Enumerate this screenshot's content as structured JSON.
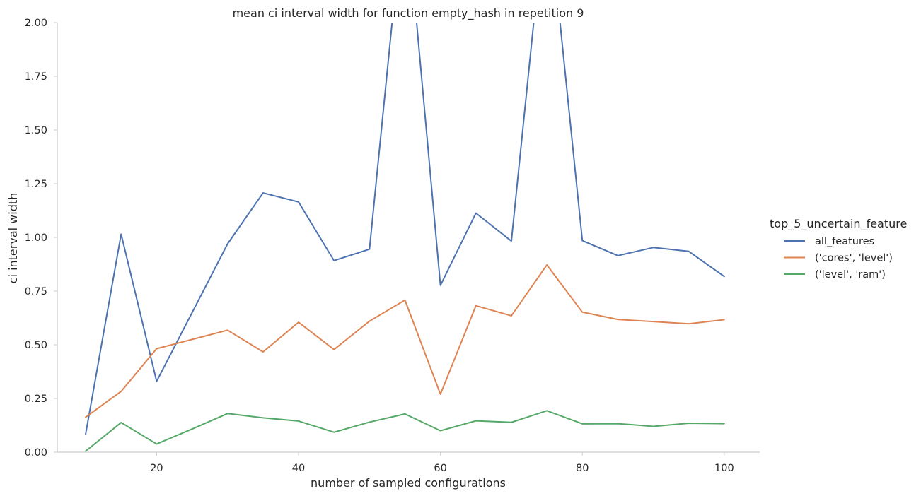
{
  "chart_data": {
    "type": "line",
    "title": "mean ci interval width for function empty_hash in repetition 9",
    "xlabel": "number of sampled configurations",
    "ylabel": "ci interval width",
    "xlim": [
      6,
      105
    ],
    "ylim": [
      0,
      2.0
    ],
    "xticks": [
      20,
      40,
      60,
      80,
      100
    ],
    "yticks": [
      0.0,
      0.25,
      0.5,
      0.75,
      1.0,
      1.25,
      1.5,
      1.75,
      2.0
    ],
    "ytick_labels": [
      "0.00",
      "0.25",
      "0.50",
      "0.75",
      "1.00",
      "1.25",
      "1.50",
      "1.75",
      "2.00"
    ],
    "grid": false,
    "legend": {
      "title": "top_5_uncertain_feature",
      "placement": "right"
    },
    "x": [
      10,
      15,
      20,
      25,
      30,
      35,
      40,
      45,
      50,
      55,
      60,
      65,
      70,
      75,
      80,
      85,
      90,
      95,
      100
    ],
    "series": [
      {
        "name": "all_features",
        "color": "#4c72b0",
        "values": [
          0.085,
          1.015,
          0.33,
          0.65,
          0.97,
          1.207,
          1.165,
          0.892,
          0.945,
          2.6,
          0.777,
          1.113,
          0.983,
          2.6,
          0.985,
          0.915,
          0.953,
          0.935,
          0.818
        ]
      },
      {
        "name": "('cores', 'level')",
        "color": "#dd8452",
        "values": [
          0.163,
          0.283,
          0.482,
          0.525,
          0.568,
          0.467,
          0.605,
          0.478,
          0.61,
          0.708,
          0.27,
          0.682,
          0.635,
          0.872,
          0.652,
          0.618,
          0.608,
          0.598,
          0.617
        ]
      },
      {
        "name": "('level', 'ram')",
        "color": "#55a868",
        "values": [
          0.005,
          0.138,
          0.038,
          0.108,
          0.18,
          0.16,
          0.145,
          0.093,
          0.14,
          0.178,
          0.1,
          0.146,
          0.139,
          0.193,
          0.132,
          0.133,
          0.12,
          0.135,
          0.133
        ]
      }
    ]
  }
}
